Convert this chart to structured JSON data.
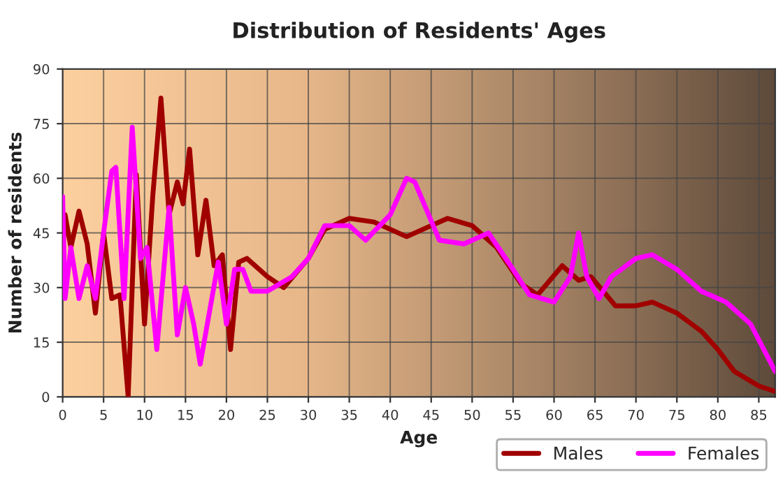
{
  "chart_data": {
    "type": "line",
    "title": "Distribution of Residents' Ages",
    "xlabel": "Age",
    "ylabel": "Number of residents",
    "xlim": [
      0,
      87
    ],
    "xticks": [
      0,
      5,
      10,
      15,
      20,
      25,
      30,
      35,
      40,
      45,
      50,
      55,
      60,
      65,
      70,
      75,
      80,
      85
    ],
    "ylim": [
      0,
      90
    ],
    "yticks": [
      0,
      15,
      30,
      45,
      60,
      75,
      90
    ],
    "grid": true,
    "legend": "bottom",
    "line_style": "solid",
    "series": [
      {
        "name": "Males",
        "color": "#a00000",
        "x": [
          0,
          0.3,
          1,
          2,
          3,
          4,
          5,
          6,
          7,
          8,
          9,
          10,
          11,
          12,
          13,
          14,
          14.7,
          15.5,
          16.5,
          17.5,
          18.5,
          19.5,
          20.5,
          21.5,
          22.5,
          25,
          27,
          30,
          32,
          35,
          38,
          42,
          45,
          47,
          50,
          53,
          56,
          58,
          61,
          63,
          64.5,
          66,
          67.5,
          70,
          72,
          75,
          78,
          80,
          82,
          85,
          87
        ],
        "values": [
          40,
          50,
          41,
          51,
          42,
          23,
          45,
          27,
          28,
          0,
          61,
          20,
          55,
          82,
          50,
          59,
          53,
          68,
          39,
          54,
          36,
          39,
          13,
          37,
          38,
          33,
          30,
          38,
          46,
          49,
          48,
          44,
          47,
          49,
          47,
          41,
          31,
          28,
          36,
          32,
          33,
          29,
          25,
          25,
          26,
          23,
          18,
          13,
          7,
          3,
          1.5
        ]
      },
      {
        "name": "Females",
        "color": "#ff00ff",
        "x": [
          0,
          0.3,
          1,
          2,
          3,
          4,
          5,
          6,
          6.5,
          7.5,
          8.5,
          9.5,
          10.3,
          11.5,
          13,
          14,
          15,
          16,
          16.8,
          19,
          20,
          21,
          22,
          23,
          25,
          28,
          30,
          32,
          35,
          37,
          40,
          42,
          43,
          46,
          49,
          52,
          55,
          57,
          60,
          62,
          63,
          64,
          65.5,
          67,
          70,
          72,
          75,
          78,
          81,
          84,
          87
        ],
        "values": [
          55,
          27,
          41,
          27,
          36,
          27,
          45,
          62,
          63,
          27,
          74,
          38,
          41,
          13,
          52,
          17,
          30,
          20,
          9,
          37,
          20,
          35,
          35,
          29,
          29,
          33,
          38,
          47,
          47,
          43,
          50,
          60,
          59,
          43,
          42,
          45,
          35,
          28,
          26,
          33,
          45,
          33,
          27,
          33,
          38,
          39,
          35,
          29,
          26,
          20,
          7
        ]
      }
    ]
  }
}
